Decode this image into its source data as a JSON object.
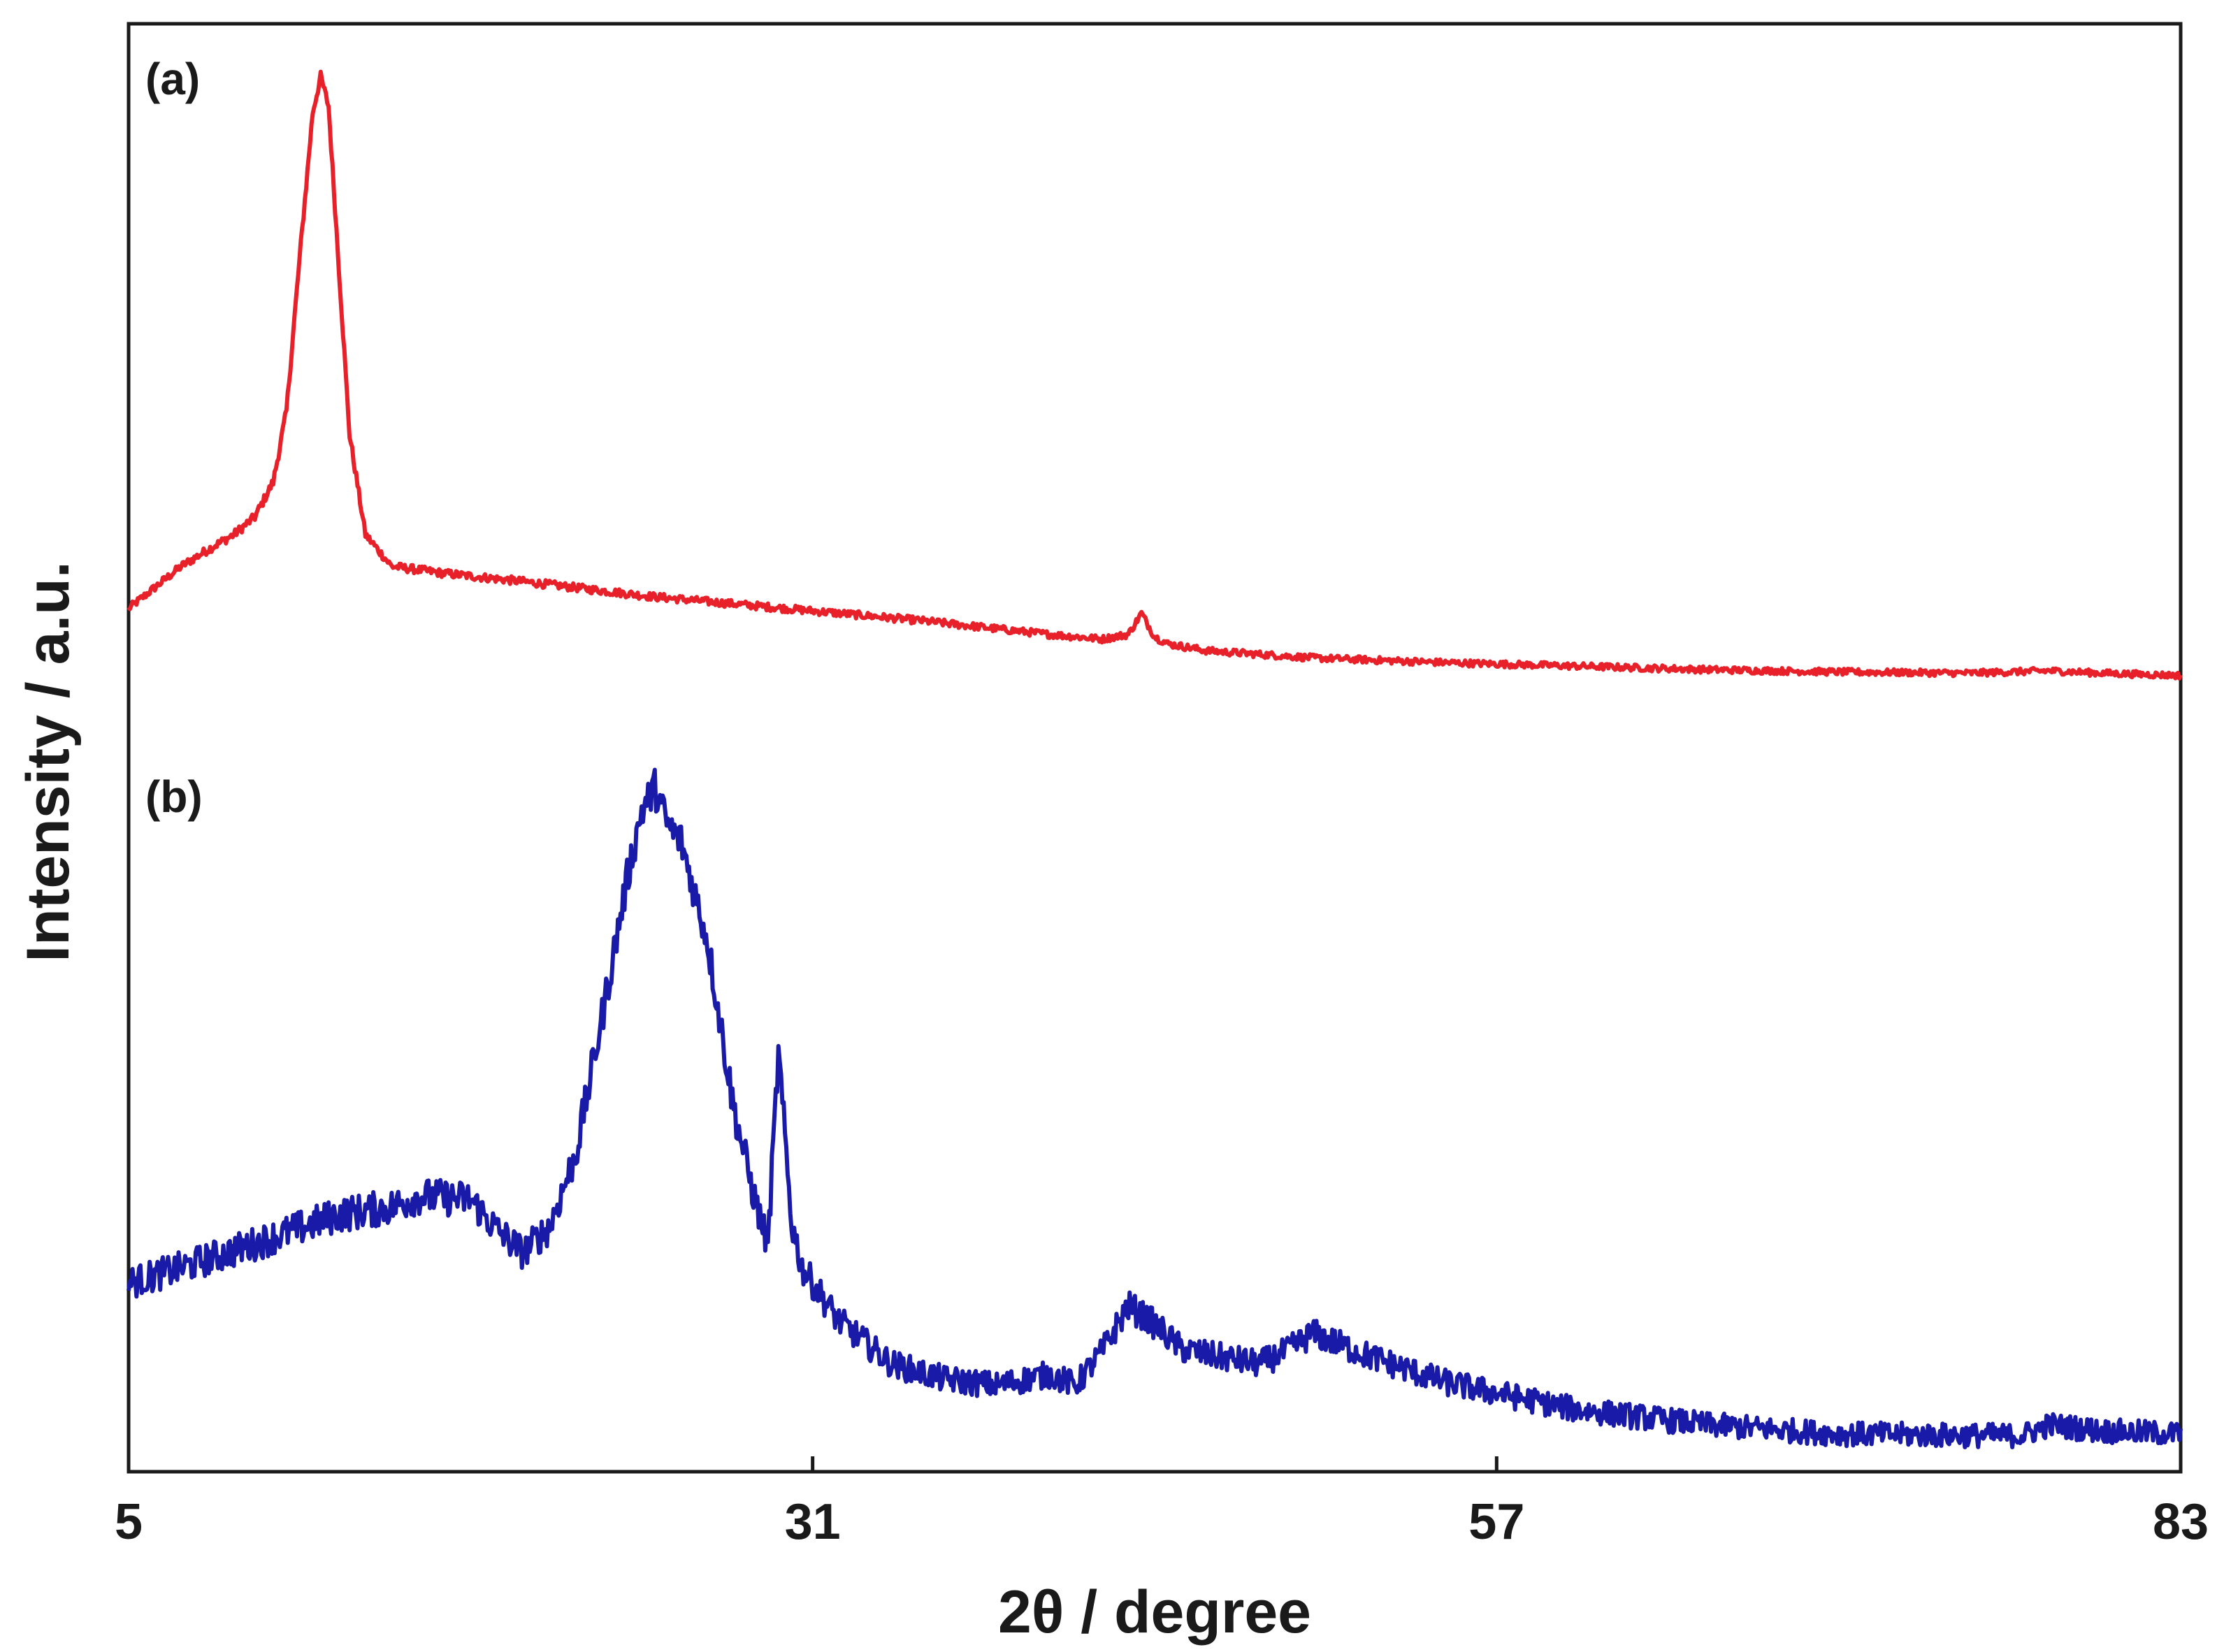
{
  "chart_data": {
    "type": "line",
    "xlabel": "2θ / degree",
    "ylabel": "Intensity / a.u.",
    "xlim": [
      5,
      83
    ],
    "xticks": [
      5,
      31,
      57,
      83
    ],
    "y_tick_labels": false,
    "grid": false,
    "legend": "none",
    "series": [
      {
        "label": "(a)",
        "color": "#e8202a",
        "x": [
          5,
          6,
          7,
          8,
          9,
          9.8,
          10.5,
          11,
          11.5,
          12,
          12.3,
          12.6,
          13,
          13.4,
          14,
          15,
          17,
          20,
          25,
          30,
          35,
          40,
          42,
          43,
          43.5,
          44,
          44.5,
          45,
          46,
          50,
          55,
          60,
          65,
          70,
          75,
          78,
          80,
          83
        ],
        "y": [
          0.62,
          0.8,
          0.98,
          1.12,
          1.25,
          1.4,
          1.7,
          2.3,
          3.6,
          4.85,
          5.15,
          4.9,
          3.5,
          2.1,
          1.25,
          0.98,
          0.92,
          0.85,
          0.72,
          0.62,
          0.52,
          0.4,
          0.36,
          0.4,
          0.58,
          0.38,
          0.32,
          0.3,
          0.26,
          0.2,
          0.16,
          0.13,
          0.1,
          0.08,
          0.07,
          0.09,
          0.07,
          0.05
        ]
      },
      {
        "label": "(b)",
        "color": "#1a1aa8",
        "x": [
          5,
          7,
          10,
          13,
          15,
          16,
          18,
          19,
          20,
          21,
          22,
          23,
          24,
          24.5,
          25,
          25.5,
          26,
          27,
          28,
          28.8,
          29.3,
          29.7,
          30.2,
          30.6,
          31,
          32,
          34,
          36,
          38,
          40,
          41,
          42,
          43,
          44,
          45,
          46,
          47,
          48,
          49,
          50,
          52,
          55,
          60,
          65,
          70,
          75,
          77,
          78,
          80,
          83
        ],
        "y": [
          1.05,
          1.15,
          1.32,
          1.5,
          1.55,
          1.62,
          1.6,
          1.4,
          1.25,
          1.42,
          1.9,
          2.8,
          3.75,
          4.15,
          4.3,
          4.05,
          3.95,
          3.3,
          2.2,
          1.6,
          1.3,
          2.55,
          1.45,
          1.15,
          1.05,
          0.8,
          0.52,
          0.42,
          0.38,
          0.45,
          0.38,
          0.6,
          0.9,
          0.78,
          0.62,
          0.58,
          0.55,
          0.52,
          0.6,
          0.72,
          0.58,
          0.4,
          0.22,
          0.12,
          0.06,
          0.05,
          0.05,
          0.12,
          0.08,
          0.06
        ]
      }
    ]
  }
}
